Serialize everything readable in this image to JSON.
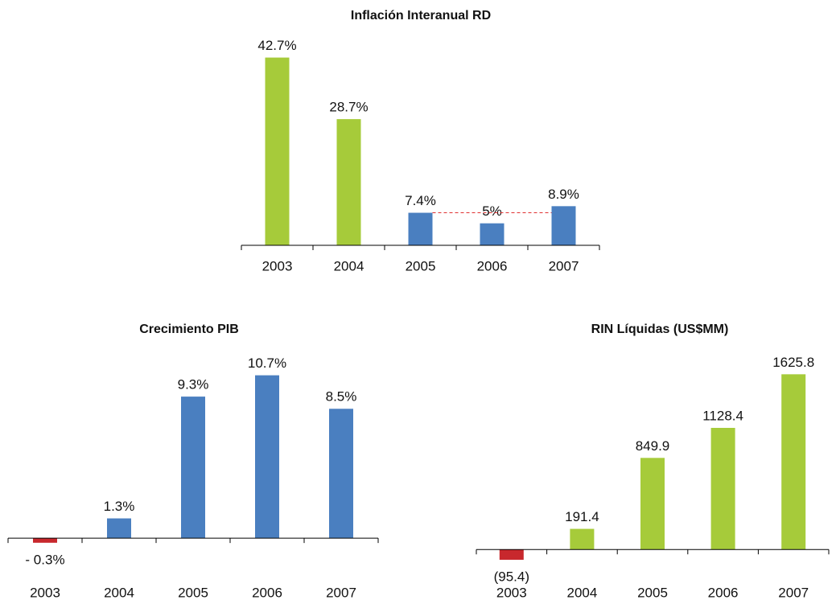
{
  "chart_data": [
    {
      "type": "bar",
      "title": "Inflación Interanual RD",
      "categories": [
        "2003",
        "2004",
        "2005",
        "2006",
        "2007"
      ],
      "values": [
        42.7,
        28.7,
        7.4,
        5,
        8.9
      ],
      "value_labels": [
        "42.7%",
        "28.7%",
        "7.4%",
        "5%",
        "8.9%"
      ],
      "colors": [
        "#a6cb3a",
        "#a6cb3a",
        "#4a7fc0",
        "#4a7fc0",
        "#4a7fc0"
      ],
      "ylim": [
        0,
        45
      ]
    },
    {
      "type": "bar",
      "title": "Crecimiento PIB",
      "categories": [
        "2003",
        "2004",
        "2005",
        "2006",
        "2007"
      ],
      "values": [
        -0.3,
        1.3,
        9.3,
        10.7,
        8.5
      ],
      "value_labels": [
        "- 0.3%",
        "1.3%",
        "9.3%",
        "10.7%",
        "8.5%"
      ],
      "colors": [
        "#c8282d",
        "#4a7fc0",
        "#4a7fc0",
        "#4a7fc0",
        "#4a7fc0"
      ],
      "ylim": [
        -2,
        12
      ]
    },
    {
      "type": "bar",
      "title": "RIN Líquidas (US$MM)",
      "categories": [
        "2003",
        "2004",
        "2005",
        "2006",
        "2007"
      ],
      "values": [
        -95.4,
        191.4,
        849.9,
        1128.4,
        1625.8
      ],
      "value_labels": [
        "(95.4)",
        "191.4",
        "849.9",
        "1128.4",
        "1625.8"
      ],
      "colors": [
        "#c8282d",
        "#a6cb3a",
        "#a6cb3a",
        "#a6cb3a",
        "#a6cb3a"
      ],
      "ylim": [
        -200,
        1800
      ]
    }
  ]
}
